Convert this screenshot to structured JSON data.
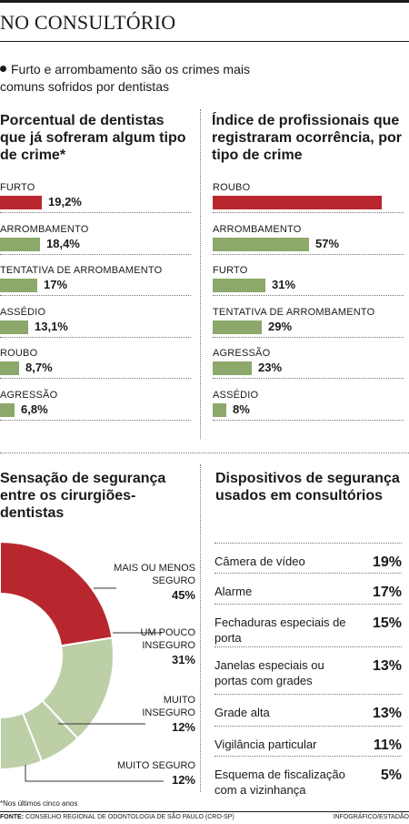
{
  "header": {
    "title": "NO CONSULTÓRIO",
    "intro": "Furto e arrombamento são os crimes mais comuns sofridos por dentistas"
  },
  "colors": {
    "red": "#b8272e",
    "green": "#8ca86a",
    "light_green": "#bccfa6"
  },
  "chart_data": [
    {
      "type": "bar",
      "orientation": "horizontal",
      "title": "Porcentual de dentistas que já sofreram algum tipo de crime*",
      "categories": [
        "FURTO",
        "ARROMBAMENTO",
        "TENTATIVA DE ARROMBAMENTO",
        "ASSÉDIO",
        "ROUBO",
        "AGRESSÃO"
      ],
      "values": [
        19.2,
        18.4,
        17,
        13.1,
        8.7,
        6.8
      ],
      "value_labels": [
        "19,2%",
        "18,4%",
        "17%",
        "13,1%",
        "8,7%",
        "6,8%"
      ],
      "highlight": "FURTO"
    },
    {
      "type": "bar",
      "orientation": "horizontal",
      "title": "Índice de profissionais que registraram ocorrência, por tipo de crime",
      "categories": [
        "ROUBO",
        "ARROMBAMENTO",
        "FURTO",
        "TENTATIVA DE ARROMBAMENTO",
        "AGRESSÃO",
        "ASSÉDIO"
      ],
      "values": [
        100,
        57,
        31,
        29,
        23,
        8
      ],
      "value_labels": [
        "",
        "57%",
        "31%",
        "29%",
        "23%",
        "8%"
      ],
      "highlight": "ROUBO"
    },
    {
      "type": "pie",
      "style": "donut",
      "title": "Sensação de segurança entre os cirurgiões-dentistas",
      "categories": [
        "MAIS OU MENOS SEGURO",
        "UM POUCO INSEGURO",
        "MUITO INSEGURO",
        "MUITO SEGURO"
      ],
      "values": [
        45,
        31,
        12,
        12
      ],
      "value_labels": [
        "45%",
        "31%",
        "12%",
        "12%"
      ]
    },
    {
      "type": "table",
      "title": "Dispositivos de segurança usados em consultórios",
      "rows": [
        {
          "name": "Câmera de vídeo",
          "value": "19%"
        },
        {
          "name": "Alarme",
          "value": "17%"
        },
        {
          "name": "Fechaduras especiais de porta",
          "value": "15%"
        },
        {
          "name": "Janelas especiais ou portas com grades",
          "value": "13%"
        },
        {
          "name": "Grade alta",
          "value": "13%"
        },
        {
          "name": "Vigilância particular",
          "value": "11%"
        },
        {
          "name": "Esquema de fiscalização com a vizinhança",
          "value": "5%"
        }
      ]
    }
  ],
  "footer": {
    "footnote": "*Nos últimos cinco anos",
    "source_label": "FONTE:",
    "source": "CONSELHO REGIONAL DE ODONTOLOGIA DE SÃO PAULO (CRO-SP)",
    "credit": "INFOGRÁFICO/ESTADÃO"
  }
}
